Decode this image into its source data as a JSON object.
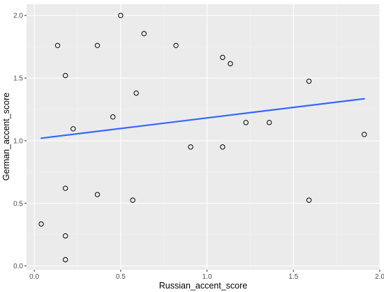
{
  "chart_data": {
    "type": "scatter",
    "title": "",
    "xlabel": "Russian_accent_score",
    "ylabel": "German_accent_score",
    "xlim": [
      -0.045,
      2.0
    ],
    "ylim": [
      -0.03,
      2.09
    ],
    "x_ticks": [
      0.0,
      0.5,
      1.0,
      1.5,
      2.0
    ],
    "x_tick_labels": [
      "0.0",
      "0.5",
      "1.0",
      "1.5",
      "2.0"
    ],
    "y_ticks": [
      0.0,
      0.5,
      1.0,
      1.5,
      2.0
    ],
    "y_tick_labels": [
      "0.0",
      "0.5",
      "1.0",
      "1.5",
      "2.0"
    ],
    "grid": true,
    "points": [
      {
        "x": 0.135,
        "y": 1.76
      },
      {
        "x": 0.18,
        "y": 1.52
      },
      {
        "x": 0.5,
        "y": 2.0
      },
      {
        "x": 0.365,
        "y": 1.76
      },
      {
        "x": 0.635,
        "y": 1.855
      },
      {
        "x": 0.82,
        "y": 1.76
      },
      {
        "x": 1.09,
        "y": 1.665
      },
      {
        "x": 1.135,
        "y": 1.615
      },
      {
        "x": 1.59,
        "y": 1.475
      },
      {
        "x": 0.59,
        "y": 1.38
      },
      {
        "x": 0.455,
        "y": 1.19
      },
      {
        "x": 0.225,
        "y": 1.095
      },
      {
        "x": 1.225,
        "y": 1.145
      },
      {
        "x": 1.36,
        "y": 1.145
      },
      {
        "x": 1.91,
        "y": 1.05
      },
      {
        "x": 0.905,
        "y": 0.95
      },
      {
        "x": 1.09,
        "y": 0.95
      },
      {
        "x": 0.18,
        "y": 0.62
      },
      {
        "x": 0.365,
        "y": 0.57
      },
      {
        "x": 0.57,
        "y": 0.525
      },
      {
        "x": 1.59,
        "y": 0.525
      },
      {
        "x": 0.04,
        "y": 0.335
      },
      {
        "x": 0.18,
        "y": 0.24
      },
      {
        "x": 0.18,
        "y": 0.05
      }
    ],
    "regression_line": {
      "x": [
        0.04,
        1.91
      ],
      "y": [
        1.02,
        1.335
      ]
    },
    "colors": {
      "panel_background": "#ebebeb",
      "grid_major": "#ffffff",
      "grid_minor": "#f4f4f4",
      "point_stroke": "#000000",
      "line": "#3366ff"
    }
  }
}
